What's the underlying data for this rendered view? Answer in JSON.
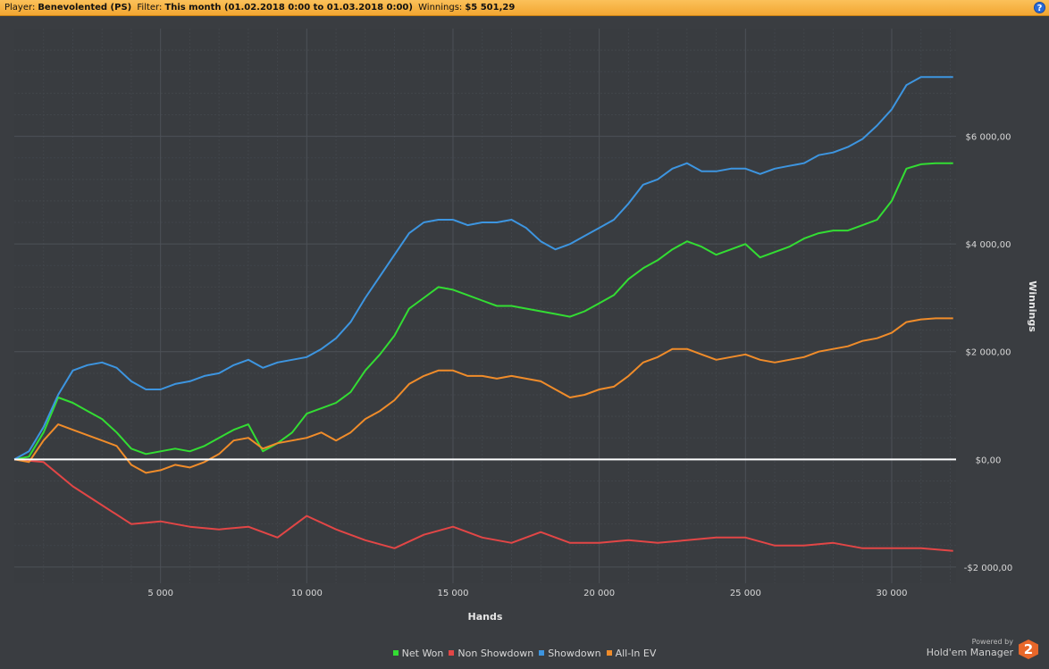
{
  "header": {
    "player_label": "Player:",
    "player_value": "Benevolented (PS)",
    "filter_label": "Filter:",
    "filter_value": "This month (01.02.2018 0:00 to 01.03.2018 0:00)",
    "winnings_label": "Winnings:",
    "winnings_value": "$5 501,29",
    "help_label": "?",
    "help_icon": "help-icon"
  },
  "branding": {
    "powered_by": "Powered by",
    "product": "Hold'em Manager",
    "logo_text": "2",
    "logo_color": "#e8672a"
  },
  "chart_data": {
    "type": "line",
    "title": "",
    "xlabel": "Hands",
    "ylabel": "Winnings",
    "xlim": [
      0,
      32200
    ],
    "ylim": [
      -2300,
      8000
    ],
    "x_ticks": [
      5000,
      10000,
      15000,
      20000,
      25000,
      30000
    ],
    "x_tick_labels": [
      "5 000",
      "10 000",
      "15 000",
      "20 000",
      "25 000",
      "30 000"
    ],
    "y_ticks": [
      -2000,
      0,
      2000,
      4000,
      6000
    ],
    "y_tick_labels": [
      "-$2 000,00",
      "$0,00",
      "$2 000,00",
      "$4 000,00",
      "$6 000,00"
    ],
    "grid": true,
    "legend_position": "bottom",
    "zero_line_color": "#ffffff",
    "series": [
      {
        "name": "Net Won",
        "color": "#33dd33",
        "x": [
          0,
          500,
          1000,
          1500,
          2000,
          2500,
          3000,
          3500,
          4000,
          4500,
          5000,
          5500,
          6000,
          6500,
          7000,
          7500,
          8000,
          8500,
          9000,
          9500,
          10000,
          10500,
          11000,
          11500,
          12000,
          12500,
          13000,
          13500,
          14000,
          14500,
          15000,
          15500,
          16000,
          16500,
          17000,
          17500,
          18000,
          18500,
          19000,
          19500,
          20000,
          20500,
          21000,
          21500,
          22000,
          22500,
          23000,
          23500,
          24000,
          24500,
          25000,
          25500,
          26000,
          26500,
          27000,
          27500,
          28000,
          28500,
          29000,
          29500,
          30000,
          30500,
          31000,
          31500,
          32100
        ],
        "y": [
          0,
          50,
          500,
          1150,
          1050,
          900,
          750,
          500,
          200,
          100,
          150,
          200,
          150,
          250,
          400,
          550,
          650,
          150,
          300,
          500,
          850,
          950,
          1050,
          1250,
          1650,
          1950,
          2300,
          2800,
          3000,
          3200,
          3150,
          3050,
          2950,
          2850,
          2850,
          2800,
          2750,
          2700,
          2650,
          2750,
          2900,
          3050,
          3350,
          3550,
          3700,
          3900,
          4050,
          3950,
          3800,
          3900,
          4000,
          3750,
          3850,
          3950,
          4100,
          4200,
          4250,
          4250,
          4350,
          4450,
          4800,
          5400,
          5480,
          5500,
          5500
        ]
      },
      {
        "name": "Non Showdown",
        "color": "#e24646",
        "x": [
          0,
          1000,
          2000,
          3000,
          4000,
          5000,
          6000,
          7000,
          8000,
          9000,
          10000,
          11000,
          12000,
          13000,
          14000,
          15000,
          16000,
          17000,
          18000,
          19000,
          20000,
          21000,
          22000,
          23000,
          24000,
          25000,
          26000,
          27000,
          28000,
          29000,
          30000,
          31000,
          32100
        ],
        "y": [
          0,
          -50,
          -500,
          -850,
          -1200,
          -1150,
          -1250,
          -1300,
          -1250,
          -1450,
          -1050,
          -1300,
          -1500,
          -1650,
          -1400,
          -1250,
          -1450,
          -1550,
          -1350,
          -1550,
          -1550,
          -1500,
          -1550,
          -1500,
          -1450,
          -1450,
          -1600,
          -1600,
          -1550,
          -1650,
          -1650,
          -1650,
          -1700
        ]
      },
      {
        "name": "Showdown",
        "color": "#3d95e0",
        "x": [
          0,
          500,
          1000,
          1500,
          2000,
          2500,
          3000,
          3500,
          4000,
          4500,
          5000,
          5500,
          6000,
          6500,
          7000,
          7500,
          8000,
          8500,
          9000,
          9500,
          10000,
          10500,
          11000,
          11500,
          12000,
          12500,
          13000,
          13500,
          14000,
          14500,
          15000,
          15500,
          16000,
          16500,
          17000,
          17500,
          18000,
          18500,
          19000,
          19500,
          20000,
          20500,
          21000,
          21500,
          22000,
          22500,
          23000,
          23500,
          24000,
          24500,
          25000,
          25500,
          26000,
          26500,
          27000,
          27500,
          28000,
          28500,
          29000,
          29500,
          30000,
          30500,
          31000,
          31500,
          32100
        ],
        "y": [
          0,
          150,
          600,
          1200,
          1650,
          1750,
          1800,
          1700,
          1450,
          1300,
          1300,
          1400,
          1450,
          1550,
          1600,
          1750,
          1850,
          1700,
          1800,
          1850,
          1900,
          2050,
          2250,
          2550,
          3000,
          3400,
          3800,
          4200,
          4400,
          4450,
          4450,
          4350,
          4400,
          4400,
          4450,
          4300,
          4050,
          3900,
          4000,
          4150,
          4300,
          4450,
          4750,
          5100,
          5200,
          5400,
          5500,
          5350,
          5350,
          5400,
          5400,
          5300,
          5400,
          5450,
          5500,
          5650,
          5700,
          5800,
          5950,
          6200,
          6500,
          6950,
          7100,
          7100,
          7100
        ]
      },
      {
        "name": "All-In EV",
        "color": "#f08c2a",
        "x": [
          0,
          500,
          1000,
          1500,
          2000,
          2500,
          3000,
          3500,
          4000,
          4500,
          5000,
          5500,
          6000,
          6500,
          7000,
          7500,
          8000,
          8500,
          9000,
          9500,
          10000,
          10500,
          11000,
          11500,
          12000,
          12500,
          13000,
          13500,
          14000,
          14500,
          15000,
          15500,
          16000,
          16500,
          17000,
          17500,
          18000,
          18500,
          19000,
          19500,
          20000,
          20500,
          21000,
          21500,
          22000,
          22500,
          23000,
          23500,
          24000,
          24500,
          25000,
          25500,
          26000,
          26500,
          27000,
          27500,
          28000,
          28500,
          29000,
          29500,
          30000,
          30500,
          31000,
          31500,
          32100
        ],
        "y": [
          0,
          -50,
          350,
          650,
          550,
          450,
          350,
          250,
          -100,
          -250,
          -200,
          -100,
          -150,
          -50,
          100,
          350,
          400,
          200,
          300,
          350,
          400,
          500,
          350,
          500,
          750,
          900,
          1100,
          1400,
          1550,
          1650,
          1650,
          1550,
          1550,
          1500,
          1550,
          1500,
          1450,
          1300,
          1150,
          1200,
          1300,
          1350,
          1550,
          1800,
          1900,
          2050,
          2050,
          1950,
          1850,
          1900,
          1950,
          1850,
          1800,
          1850,
          1900,
          2000,
          2050,
          2100,
          2200,
          2250,
          2350,
          2550,
          2600,
          2620,
          2620
        ]
      }
    ]
  }
}
